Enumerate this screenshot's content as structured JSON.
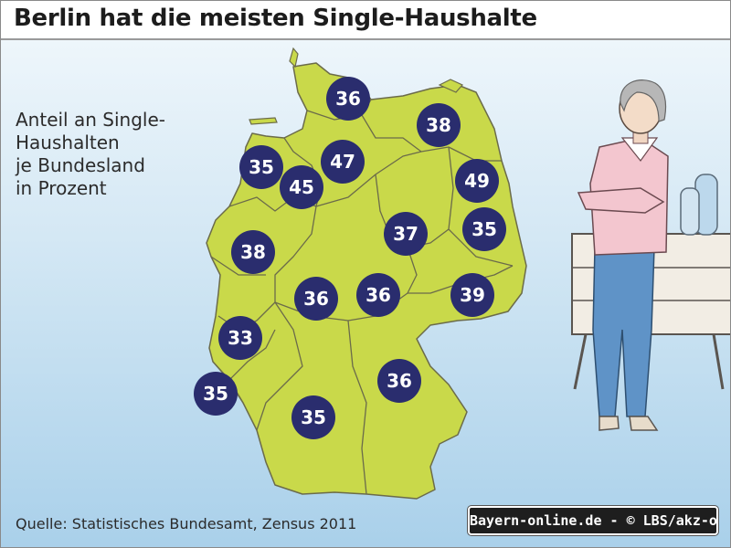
{
  "title": "Berlin hat die meisten Single-Haushalte",
  "legend": {
    "lines": [
      "Anteil an Single-",
      "Haushalten",
      "je Bundesland",
      "in Prozent"
    ]
  },
  "source": "Quelle: Statistisches Bundesamt, Zensus 2011",
  "credit": "Bayern-online.de - © LBS/akz-o",
  "colors": {
    "land": "#c9d94a",
    "border": "#6b6b4a",
    "badge": "#2a2d6e",
    "water": "#a9d0ea"
  },
  "states": [
    {
      "value": "36"
    },
    {
      "value": "38"
    },
    {
      "value": "35"
    },
    {
      "value": "47"
    },
    {
      "value": "45"
    },
    {
      "value": "49"
    },
    {
      "value": "35"
    },
    {
      "value": "37"
    },
    {
      "value": "38"
    },
    {
      "value": "36"
    },
    {
      "value": "36"
    },
    {
      "value": "39"
    },
    {
      "value": "33"
    },
    {
      "value": "36"
    },
    {
      "value": "35"
    },
    {
      "value": "35"
    }
  ]
}
